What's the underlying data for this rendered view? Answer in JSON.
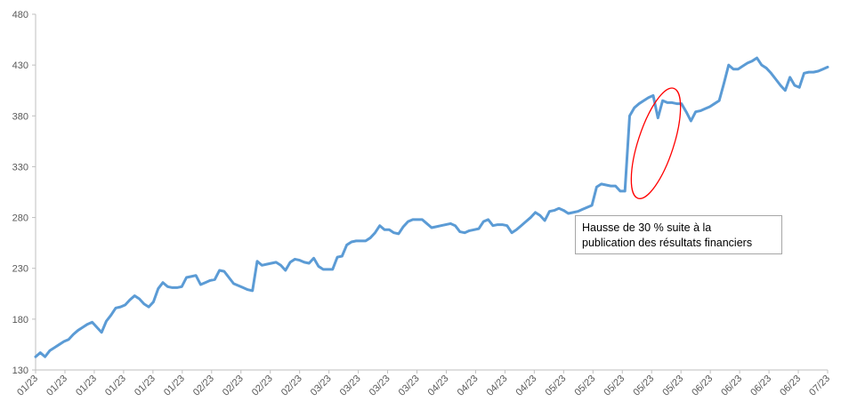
{
  "chart_data": {
    "type": "line",
    "title": "",
    "xlabel": "",
    "ylabel": "",
    "ylim": [
      130,
      480
    ],
    "y_ticks": [
      130,
      180,
      230,
      280,
      330,
      380,
      430,
      480
    ],
    "x_tick_labels": [
      "01/23",
      "01/23",
      "01/23",
      "01/23",
      "01/23",
      "01/23",
      "02/23",
      "02/23",
      "02/23",
      "02/23",
      "03/23",
      "03/23",
      "03/23",
      "03/23",
      "04/23",
      "04/23",
      "04/23",
      "04/23",
      "05/23",
      "05/23",
      "05/23",
      "05/23",
      "05/23",
      "06/23",
      "06/23",
      "06/23",
      "06/23",
      "07/23"
    ],
    "grid": false,
    "legend": "none",
    "series": [
      {
        "color": "#5b9bd5",
        "values": [
          143,
          147,
          143,
          149,
          152,
          155,
          158,
          160,
          165,
          169,
          172,
          175,
          177,
          172,
          167,
          178,
          184,
          191,
          192,
          194,
          199,
          203,
          200,
          195,
          192,
          197,
          210,
          216,
          212,
          211,
          211,
          212,
          221,
          222,
          223,
          214,
          216,
          218,
          219,
          228,
          227,
          221,
          215,
          213,
          211,
          209,
          208,
          237,
          233,
          234,
          235,
          236,
          233,
          228,
          236,
          239,
          238,
          236,
          235,
          240,
          232,
          229,
          229,
          229,
          241,
          242,
          253,
          256,
          257,
          257,
          257,
          260,
          265,
          272,
          268,
          268,
          265,
          264,
          271,
          276,
          278,
          278,
          278,
          274,
          270,
          271,
          272,
          273,
          274,
          272,
          266,
          265,
          267,
          268,
          269,
          276,
          278,
          272,
          273,
          273,
          272,
          265,
          268,
          272,
          276,
          280,
          285,
          282,
          277,
          286,
          287,
          289,
          287,
          284,
          285,
          286,
          288,
          290,
          292,
          310,
          313,
          312,
          311,
          311,
          306,
          306,
          380,
          388,
          392,
          395,
          398,
          400,
          378,
          395,
          393,
          393,
          392,
          392,
          384,
          375,
          384,
          385,
          387,
          389,
          392,
          395,
          412,
          430,
          426,
          426,
          429,
          432,
          434,
          437,
          430,
          427,
          422,
          416,
          410,
          405,
          418,
          410,
          408,
          422,
          423,
          423,
          424,
          426,
          428
        ]
      }
    ],
    "annotation": {
      "line1": "Hausse de 30 % suite à la",
      "line2": "publication des résultats financiers",
      "highlight_color": "#ff0000"
    }
  }
}
